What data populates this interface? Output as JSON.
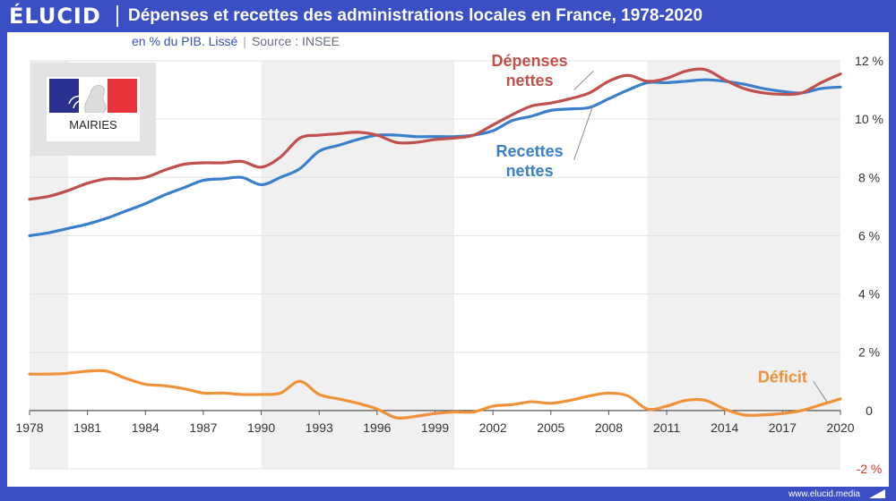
{
  "header": {
    "brand": "ÉLUCID",
    "title": "Dépenses et recettes des administrations locales en France, 1978-2020",
    "subtitle_unit": "en % du PIB. Lissé",
    "subtitle_source": "Source : INSEE"
  },
  "logo": {
    "label": "MAIRIES"
  },
  "footer": {
    "url": "www.elucid.media"
  },
  "colors": {
    "frame": "#3b4fc4",
    "depenses": "#c0504d",
    "recettes": "#3a7fcb",
    "deficit": "#f0923a",
    "negative_tick": "#d9382a"
  },
  "chart_data": {
    "type": "line",
    "xlim": [
      1978,
      2020
    ],
    "ylim": [
      -2,
      12
    ],
    "x_ticks": [
      1978,
      1981,
      1984,
      1987,
      1990,
      1993,
      1996,
      1999,
      2002,
      2005,
      2008,
      2011,
      2014,
      2017,
      2020
    ],
    "y_ticks": [
      {
        "value": 12,
        "label": "12 %"
      },
      {
        "value": 10,
        "label": "10 %"
      },
      {
        "value": 8,
        "label": "8 %"
      },
      {
        "value": 6,
        "label": "6 %"
      },
      {
        "value": 4,
        "label": "4 %"
      },
      {
        "value": 2,
        "label": "2 %"
      },
      {
        "value": 0,
        "label": "0"
      },
      {
        "value": -2,
        "label": "-2 %"
      }
    ],
    "shaded_periods": [
      [
        1978,
        1980
      ],
      [
        1990,
        2000
      ],
      [
        2010,
        2020
      ]
    ],
    "x": [
      1978,
      1979,
      1980,
      1981,
      1982,
      1983,
      1984,
      1985,
      1986,
      1987,
      1988,
      1989,
      1990,
      1991,
      1992,
      1993,
      1994,
      1995,
      1996,
      1997,
      1998,
      1999,
      2000,
      2001,
      2002,
      2003,
      2004,
      2005,
      2006,
      2007,
      2008,
      2009,
      2010,
      2011,
      2012,
      2013,
      2014,
      2015,
      2016,
      2017,
      2018,
      2019,
      2020
    ],
    "series": [
      {
        "name": "Dépenses nettes",
        "label_lines": [
          "Dépenses",
          "nettes"
        ],
        "color": "#c0504d",
        "values": [
          7.25,
          7.35,
          7.55,
          7.8,
          7.95,
          7.95,
          8.0,
          8.25,
          8.45,
          8.5,
          8.5,
          8.55,
          8.35,
          8.7,
          9.35,
          9.45,
          9.5,
          9.55,
          9.45,
          9.2,
          9.2,
          9.3,
          9.35,
          9.45,
          9.8,
          10.15,
          10.45,
          10.55,
          10.7,
          10.9,
          11.3,
          11.5,
          11.3,
          11.4,
          11.65,
          11.7,
          11.35,
          11.05,
          10.9,
          10.85,
          10.9,
          11.25,
          11.55
        ]
      },
      {
        "name": "Recettes nettes",
        "label_lines": [
          "Recettes",
          "nettes"
        ],
        "color": "#3a7fcb",
        "values": [
          6.0,
          6.1,
          6.25,
          6.4,
          6.6,
          6.85,
          7.1,
          7.4,
          7.65,
          7.9,
          7.95,
          8.0,
          7.75,
          8.0,
          8.3,
          8.9,
          9.1,
          9.3,
          9.45,
          9.45,
          9.4,
          9.4,
          9.4,
          9.45,
          9.6,
          9.95,
          10.1,
          10.3,
          10.35,
          10.4,
          10.7,
          11.0,
          11.25,
          11.25,
          11.3,
          11.35,
          11.3,
          11.2,
          11.05,
          10.95,
          10.9,
          11.05,
          11.1
        ]
      },
      {
        "name": "Déficit",
        "label_lines": [
          "Déficit"
        ],
        "color": "#f0923a",
        "values": [
          1.25,
          1.25,
          1.28,
          1.35,
          1.35,
          1.1,
          0.9,
          0.85,
          0.75,
          0.6,
          0.6,
          0.55,
          0.55,
          0.6,
          1.0,
          0.55,
          0.4,
          0.25,
          0.05,
          -0.25,
          -0.2,
          -0.1,
          -0.05,
          -0.05,
          0.15,
          0.2,
          0.3,
          0.25,
          0.35,
          0.5,
          0.6,
          0.5,
          0.05,
          0.15,
          0.35,
          0.35,
          0.05,
          -0.15,
          -0.15,
          -0.1,
          0.0,
          0.2,
          0.4
        ]
      }
    ]
  }
}
